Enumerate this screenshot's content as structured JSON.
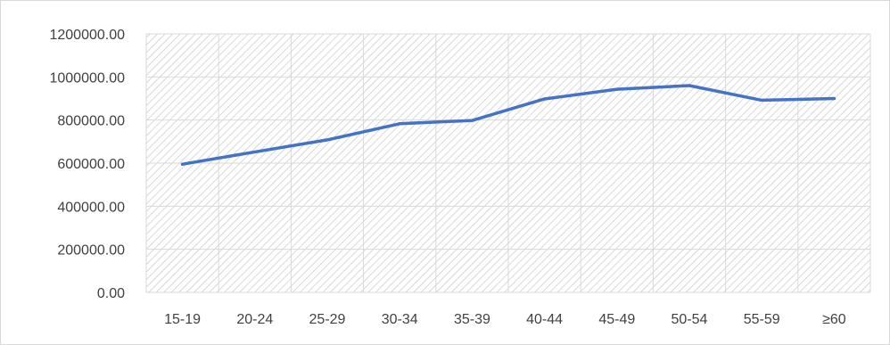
{
  "chart_data": {
    "type": "line",
    "title": "",
    "xlabel": "",
    "ylabel": "",
    "categories": [
      "15-19",
      "20-24",
      "25-29",
      "30-34",
      "35-39",
      "40-44",
      "45-49",
      "50-54",
      "55-59",
      "≥60"
    ],
    "series": [
      {
        "values": [
          595000,
          652000,
          708000,
          783000,
          798000,
          898000,
          943000,
          960000,
          892000,
          900000
        ],
        "color": "#4472C4"
      }
    ],
    "ylim": [
      0,
      1200000
    ],
    "y_ticks": [
      0,
      200000,
      400000,
      600000,
      800000,
      1000000,
      1200000
    ],
    "y_tick_labels": [
      "0.00",
      "200000.00",
      "400000.00",
      "600000.00",
      "800000.00",
      "1000000.00",
      "1200000.00"
    ],
    "grid": true,
    "plot_fill": "diagonal-hatch",
    "legend": "none"
  },
  "colors": {
    "line": "#4472C4",
    "gridline": "#d9d9d9",
    "hatch": "#c8c8c8",
    "text": "#404040"
  }
}
